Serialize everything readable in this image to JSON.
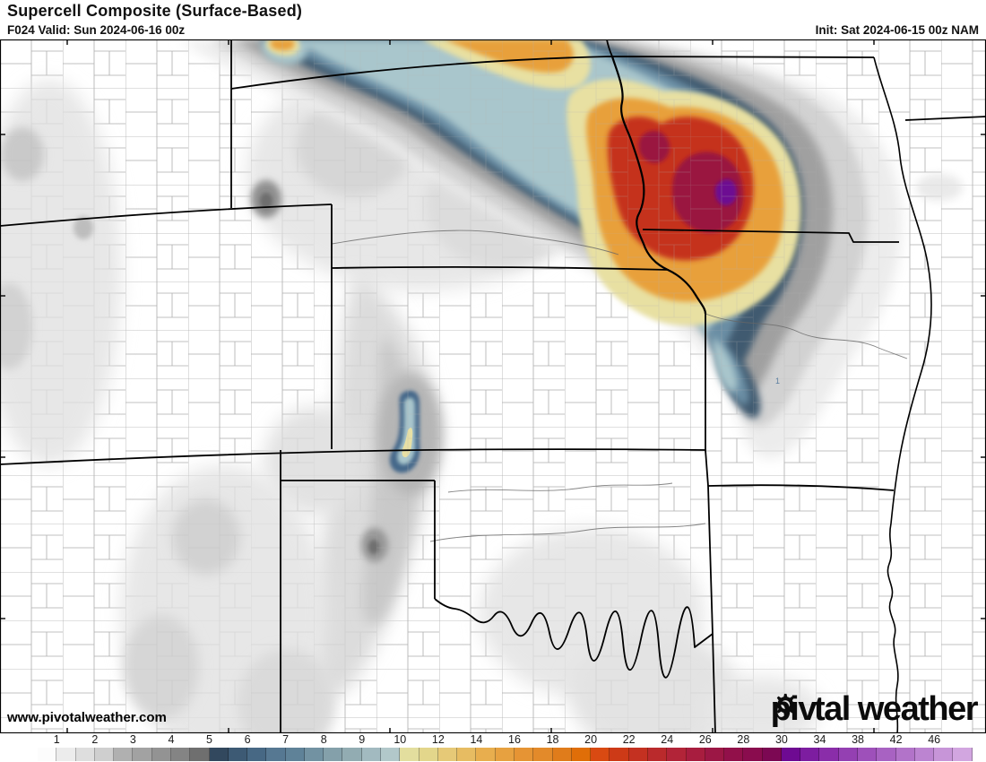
{
  "header": {
    "title": "Supercell Composite (Surface-Based)",
    "valid": "F024 Valid: Sun 2024-06-16 00z",
    "init": "Init: Sat 2024-06-15 00z NAM"
  },
  "map": {
    "watermark": "www.pivotalweather.com",
    "logo_pre": "piv",
    "logo_post": "tal weather",
    "contour_label": "1",
    "region": "Central Plains (NE, IA, CO, KS, MO, OK, TX panhandle)"
  },
  "palette": {
    "gray_light": "#ececec",
    "gray_mid": "#a0a0a0",
    "blue_dark": "#3f5a70",
    "blue_mid": "#6b8ea4",
    "blue_light": "#a9c6cc",
    "yellow": "#e8e0a2",
    "orange": "#e8a03a",
    "red": "#c5321f",
    "dark_red": "#9a1240",
    "purple": "#6d0a92"
  },
  "colorbar": {
    "labels": [
      "1",
      "2",
      "3",
      "4",
      "5",
      "6",
      "7",
      "8",
      "9",
      "10",
      "12",
      "14",
      "16",
      "18",
      "20",
      "22",
      "24",
      "26",
      "28",
      "30",
      "34",
      "38",
      "42",
      "46"
    ],
    "boundaries": [
      1,
      3,
      5,
      7,
      9,
      11,
      13,
      15,
      17,
      19,
      21,
      23,
      25,
      27,
      29,
      31,
      33,
      35,
      37,
      39,
      41,
      43,
      45,
      47
    ],
    "colors": [
      "#fcfcfc",
      "#ececec",
      "#dedede",
      "#cfcfcf",
      "#b0b0b0",
      "#a2a2a2",
      "#939393",
      "#848484",
      "#6f6f6f",
      "#32485e",
      "#3d5a74",
      "#476884",
      "#567892",
      "#5f8298",
      "#7292a2",
      "#84a0aa",
      "#92acb2",
      "#a2bac0",
      "#b2c8ca",
      "#e3de9e",
      "#e3d68b",
      "#e6c977",
      "#e7bc62",
      "#e8ae4e",
      "#e7a140",
      "#e69434",
      "#e38a2a",
      "#e07c1b",
      "#e06e08",
      "#d94a12",
      "#cd3a17",
      "#c43121",
      "#ba2a2c",
      "#b22438",
      "#a81d3f",
      "#9c1745",
      "#92104a",
      "#8a0c4e",
      "#7c0853",
      "#6e0a92",
      "#7d1da0",
      "#8a2da9",
      "#9440b2",
      "#9e50ba",
      "#a862c2",
      "#b273c9",
      "#bc84d1",
      "#c795d8",
      "#d2a6e0"
    ]
  }
}
